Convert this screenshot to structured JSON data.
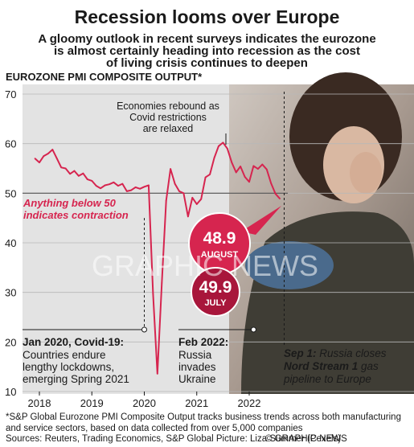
{
  "headline": "Recession looms over Europe",
  "subtitle_lines": [
    "A gloomy outlook in recent surveys indicates the eurozone",
    "is almost certainly heading into recession as the cost",
    "of living crisis continues to deepen"
  ],
  "chart_data": {
    "type": "line",
    "title": "EUROZONE PMI COMPOSITE OUTPUT*",
    "ylim": [
      10,
      70
    ],
    "y_ticks": [
      "70",
      "60",
      "50",
      "40",
      "30",
      "20",
      "10"
    ],
    "x_ticks": [
      "2018",
      "2019",
      "2020",
      "2021",
      "2022"
    ],
    "threshold": 50,
    "line_color": "#d6254f",
    "series": [
      {
        "x": [
          "2017-12",
          "2018-01",
          "2018-02",
          "2018-03",
          "2018-04",
          "2018-05",
          "2018-06",
          "2018-07",
          "2018-08",
          "2018-09",
          "2018-10",
          "2018-11",
          "2018-12",
          "2019-01",
          "2019-02",
          "2019-03",
          "2019-04",
          "2019-05",
          "2019-06",
          "2019-07",
          "2019-08",
          "2019-09",
          "2019-10",
          "2019-11",
          "2019-12",
          "2020-01",
          "2020-02",
          "2020-03",
          "2020-04",
          "2020-05",
          "2020-06",
          "2020-07",
          "2020-08",
          "2020-09",
          "2020-10",
          "2020-11",
          "2020-12",
          "2021-01",
          "2021-02",
          "2021-03",
          "2021-04",
          "2021-05",
          "2021-06",
          "2021-07",
          "2021-08",
          "2021-09",
          "2021-10",
          "2021-11",
          "2021-12",
          "2022-01",
          "2022-02",
          "2022-03",
          "2022-04",
          "2022-05",
          "2022-06",
          "2022-07",
          "2022-08"
        ],
        "values": [
          57.0,
          56.2,
          57.5,
          58.0,
          58.8,
          57.0,
          55.2,
          55.0,
          53.9,
          54.5,
          53.5,
          54.0,
          52.8,
          52.5,
          51.5,
          51.0,
          51.6,
          51.8,
          52.2,
          51.5,
          51.9,
          50.4,
          50.6,
          51.2,
          50.9,
          51.3,
          51.6,
          29.7,
          13.6,
          31.9,
          48.5,
          54.9,
          51.9,
          50.4,
          50.0,
          45.3,
          49.1,
          47.8,
          48.8,
          53.2,
          53.8,
          57.1,
          59.5,
          60.2,
          59.0,
          56.2,
          54.2,
          55.4,
          53.3,
          52.3,
          55.5,
          54.9,
          55.8,
          54.8,
          52.0,
          49.9,
          48.9
        ]
      }
    ],
    "annotations": {
      "contraction": [
        "Anything below 50",
        "indicates contraction"
      ],
      "rebound": [
        "Economies rebound as",
        "Covid restrictions",
        "are relaxed"
      ],
      "covid_title": "Jan 2020, Covid-19:",
      "covid_body": [
        "Countries endure",
        "lengthy lockdowns,",
        "emerging Spring 2021"
      ],
      "ukraine_title": "Feb 2022:",
      "ukraine_body": [
        "Russia",
        "invades",
        "Ukraine"
      ],
      "nord_title": "Sep 1:",
      "nord_rest1": " Russia closes",
      "nord_bold": "Nord Stream 1",
      "nord_rest2": " gas",
      "nord_line3": "pipeline to Europe",
      "august_value": "48.9",
      "august_label": "AUGUST",
      "july_value": "49.9",
      "july_label": "JULY"
    }
  },
  "watermark": "GRAPHIC NEWS",
  "footnote_lines": [
    "*S&P Global Eurozone PMI Composite Output tracks business trends across both manufacturing",
    "and service sectors, based on data collected from over 5,000 companies"
  ],
  "sources": "Sources: Reuters, Trading Economics, S&P Global   Picture: Liza Summer (Pexels)",
  "credit": "© GRAPHIC NEWS"
}
